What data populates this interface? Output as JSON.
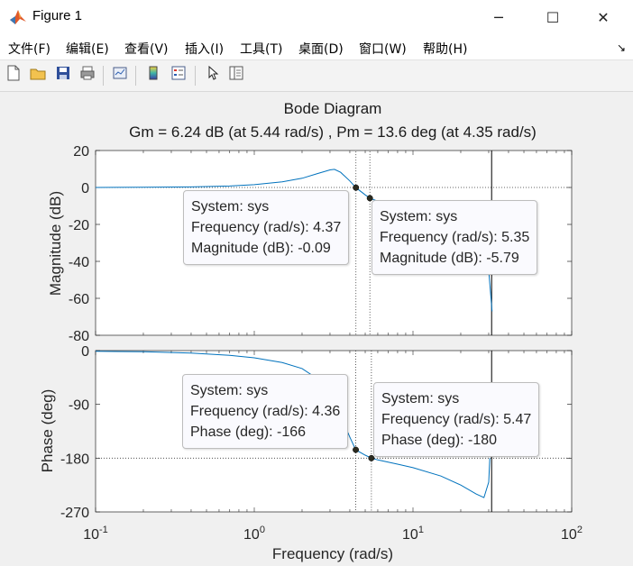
{
  "window": {
    "title": "Figure 1",
    "minimize_glyph": "─",
    "maximize_glyph": "☐",
    "close_glyph": "✕"
  },
  "menu": {
    "items": [
      "文件(F)",
      "编辑(E)",
      "查看(V)",
      "插入(I)",
      "工具(T)",
      "桌面(D)",
      "窗口(W)",
      "帮助(H)"
    ],
    "dock_glyph": "↘"
  },
  "toolbar": {
    "icons": [
      "new-figure-icon",
      "open-file-icon",
      "save-icon",
      "print-icon",
      "link-plot-icon",
      "insert-colorbar-icon",
      "insert-legend-icon",
      "select-arrow-icon",
      "property-inspector-icon"
    ]
  },
  "plot": {
    "title": "Bode Diagram",
    "subtitle": "Gm = 6.24 dB (at 5.44 rad/s) ,  Pm = 13.6 deg (at 4.35 rad/s)",
    "xlabel": "Frequency  (rad/s)",
    "mag_ylabel": "Magnitude (dB)",
    "phase_ylabel": "Phase (deg)",
    "x_tick_base": "10",
    "x_tick_exps": [
      "-1",
      "0",
      "1",
      "2"
    ],
    "mag_ticks": [
      "20",
      "0",
      "-20",
      "-40",
      "-60",
      "-80"
    ],
    "phase_ticks": [
      "0",
      "-90",
      "-180",
      "-270"
    ],
    "line_color": "#0072bd",
    "axis_color": "#262626"
  },
  "chart_data": {
    "type": "line",
    "title": "Bode Diagram",
    "subtitle": "Gm = 6.24 dB (at 5.44 rad/s) ,  Pm = 13.6 deg (at 4.35 rad/s)",
    "xlabel": "Frequency  (rad/s)",
    "xscale": "log",
    "xlim": [
      0.1,
      100
    ],
    "grid": "off",
    "panels": [
      {
        "ylabel": "Magnitude (dB)",
        "ylim": [
          -80,
          20
        ],
        "yticks": [
          20,
          0,
          -20,
          -40,
          -60,
          -80
        ],
        "series": [
          {
            "x": [
              0.1,
              0.2,
              0.4,
              0.7,
              1.0,
              1.5,
              2.0,
              2.5,
              3.0,
              3.2,
              3.5,
              4.0,
              4.37,
              5.0,
              5.35,
              6.0,
              8.0,
              10.0,
              15.0,
              20.0,
              25.0,
              28.0,
              30.0,
              31.5
            ],
            "y": [
              0,
              0.1,
              0.3,
              0.8,
              1.5,
              3,
              5,
              7.5,
              9.5,
              9.8,
              8.2,
              3.5,
              -0.09,
              -4.0,
              -5.79,
              -7.5,
              -10,
              -12,
              -15,
              -19,
              -26,
              -34,
              -45,
              -67
            ]
          }
        ]
      },
      {
        "ylabel": "Phase (deg)",
        "ylim": [
          -270,
          0
        ],
        "yticks": [
          0,
          -90,
          -180,
          -270
        ],
        "series": [
          {
            "x": [
              0.1,
              0.2,
              0.4,
              0.7,
              1.0,
              1.5,
              2.0,
              2.5,
              3.0,
              3.5,
              4.0,
              4.36,
              5.0,
              5.47,
              6.0,
              8.0,
              10.0,
              15.0,
              20.0,
              25.0,
              28.0,
              30.0,
              30.5
            ],
            "y": [
              -1,
              -2,
              -4,
              -8,
              -12,
              -20,
              -30,
              -47,
              -78,
              -110,
              -145,
              -166,
              -175,
              -180,
              -183,
              -190,
              -196,
              -210,
              -225,
              -240,
              -246,
              -220,
              -180
            ]
          }
        ]
      }
    ],
    "markers": [
      {
        "panel": 0,
        "x": 4.37,
        "y": -0.09
      },
      {
        "panel": 0,
        "x": 5.35,
        "y": -5.79
      },
      {
        "panel": 1,
        "x": 4.36,
        "y": -166
      },
      {
        "panel": 1,
        "x": 5.47,
        "y": -180
      }
    ],
    "reference_lines": {
      "mag_db": 0,
      "phase_deg": -180,
      "vertical_rad_s": 31.3
    }
  },
  "datatips": [
    {
      "system": "System: sys",
      "frequency": "Frequency (rad/s): 4.37",
      "value": "Magnitude (dB): -0.09"
    },
    {
      "system": "System: sys",
      "frequency": "Frequency (rad/s): 5.35",
      "value": "Magnitude (dB): -5.79"
    },
    {
      "system": "System: sys",
      "frequency": "Frequency (rad/s): 4.36",
      "value": "Phase (deg): -166"
    },
    {
      "system": "System: sys",
      "frequency": "Frequency (rad/s): 5.47",
      "value": "Phase (deg): -180"
    }
  ]
}
